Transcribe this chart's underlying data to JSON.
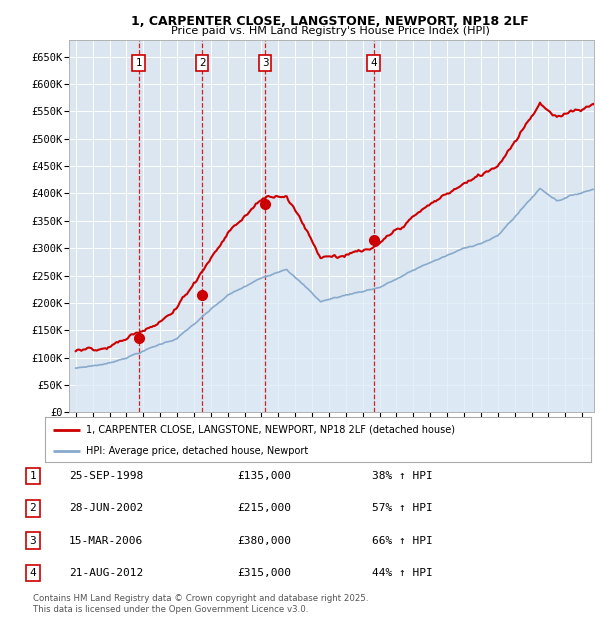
{
  "title1": "1, CARPENTER CLOSE, LANGSTONE, NEWPORT, NP18 2LF",
  "title2": "Price paid vs. HM Land Registry's House Price Index (HPI)",
  "ylabel_ticks": [
    "£0",
    "£50K",
    "£100K",
    "£150K",
    "£200K",
    "£250K",
    "£300K",
    "£350K",
    "£400K",
    "£450K",
    "£500K",
    "£550K",
    "£600K",
    "£650K"
  ],
  "ytick_values": [
    0,
    50000,
    100000,
    150000,
    200000,
    250000,
    300000,
    350000,
    400000,
    450000,
    500000,
    550000,
    600000,
    650000
  ],
  "ylim": [
    0,
    680000
  ],
  "sale_dates": [
    1998.73,
    2002.49,
    2006.21,
    2012.64
  ],
  "sale_prices": [
    135000,
    215000,
    380000,
    315000
  ],
  "sale_labels": [
    "1",
    "2",
    "3",
    "4"
  ],
  "property_color": "#cc0000",
  "hpi_line_color": "#88aacc",
  "hpi_fill_color": "#dce9f5",
  "background_color": "#dce6f1",
  "legend_label_property": "1, CARPENTER CLOSE, LANGSTONE, NEWPORT, NP18 2LF (detached house)",
  "legend_label_hpi": "HPI: Average price, detached house, Newport",
  "transactions": [
    {
      "num": "1",
      "date": "25-SEP-1998",
      "price": "£135,000",
      "change": "38% ↑ HPI"
    },
    {
      "num": "2",
      "date": "28-JUN-2002",
      "price": "£215,000",
      "change": "57% ↑ HPI"
    },
    {
      "num": "3",
      "date": "15-MAR-2006",
      "price": "£380,000",
      "change": "66% ↑ HPI"
    },
    {
      "num": "4",
      "date": "21-AUG-2012",
      "price": "£315,000",
      "change": "44% ↑ HPI"
    }
  ],
  "footer": "Contains HM Land Registry data © Crown copyright and database right 2025.\nThis data is licensed under the Open Government Licence v3.0."
}
